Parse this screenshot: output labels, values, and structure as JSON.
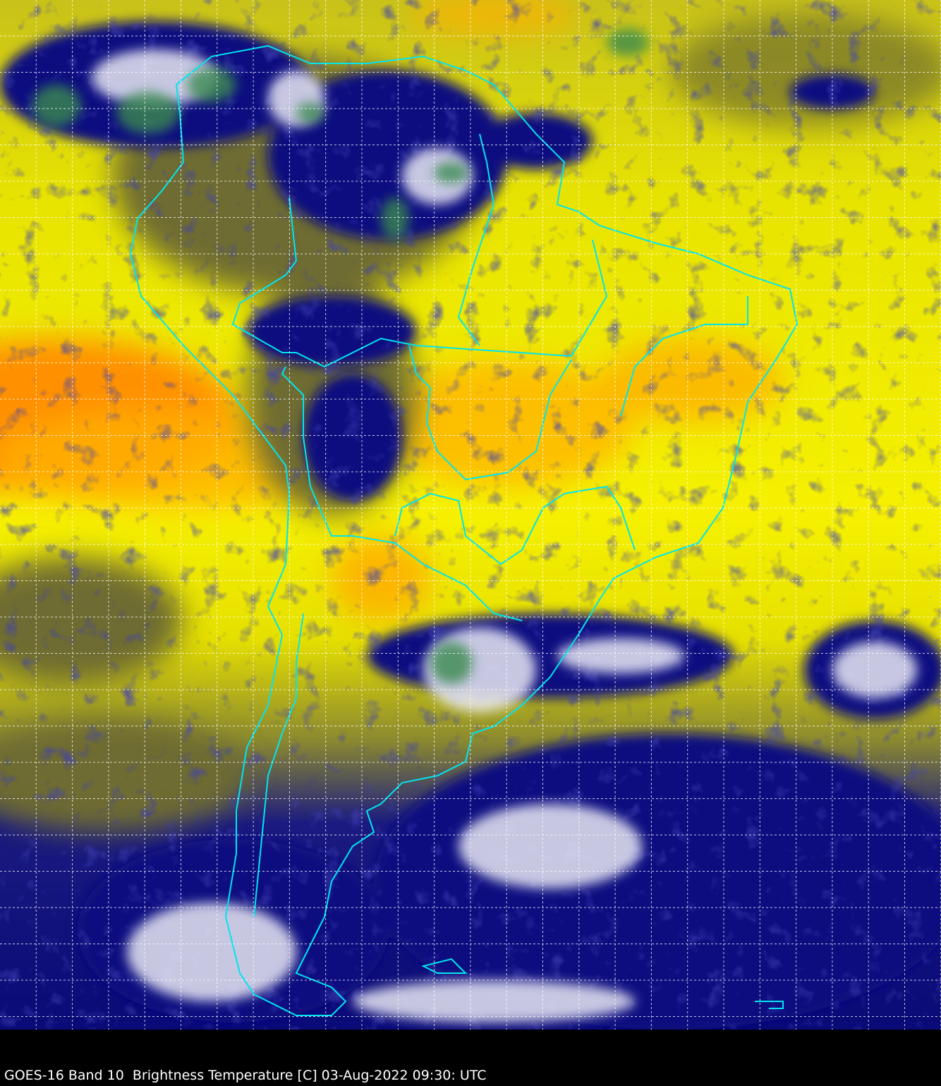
{
  "caption": "GOES-16 Band 10  Brightness Temperature [C] 03-Aug-2022 09:30: UTC",
  "colors": {
    "background": "#000000",
    "warm_yellow": "#f4f000",
    "orange": "#ff9a00",
    "olive": "#8c8a2a",
    "cold_navy": "#0a0a78",
    "cloud_white": "#e8e8f4",
    "coastline": "#00e5f0",
    "grid": "#ffffff"
  }
}
